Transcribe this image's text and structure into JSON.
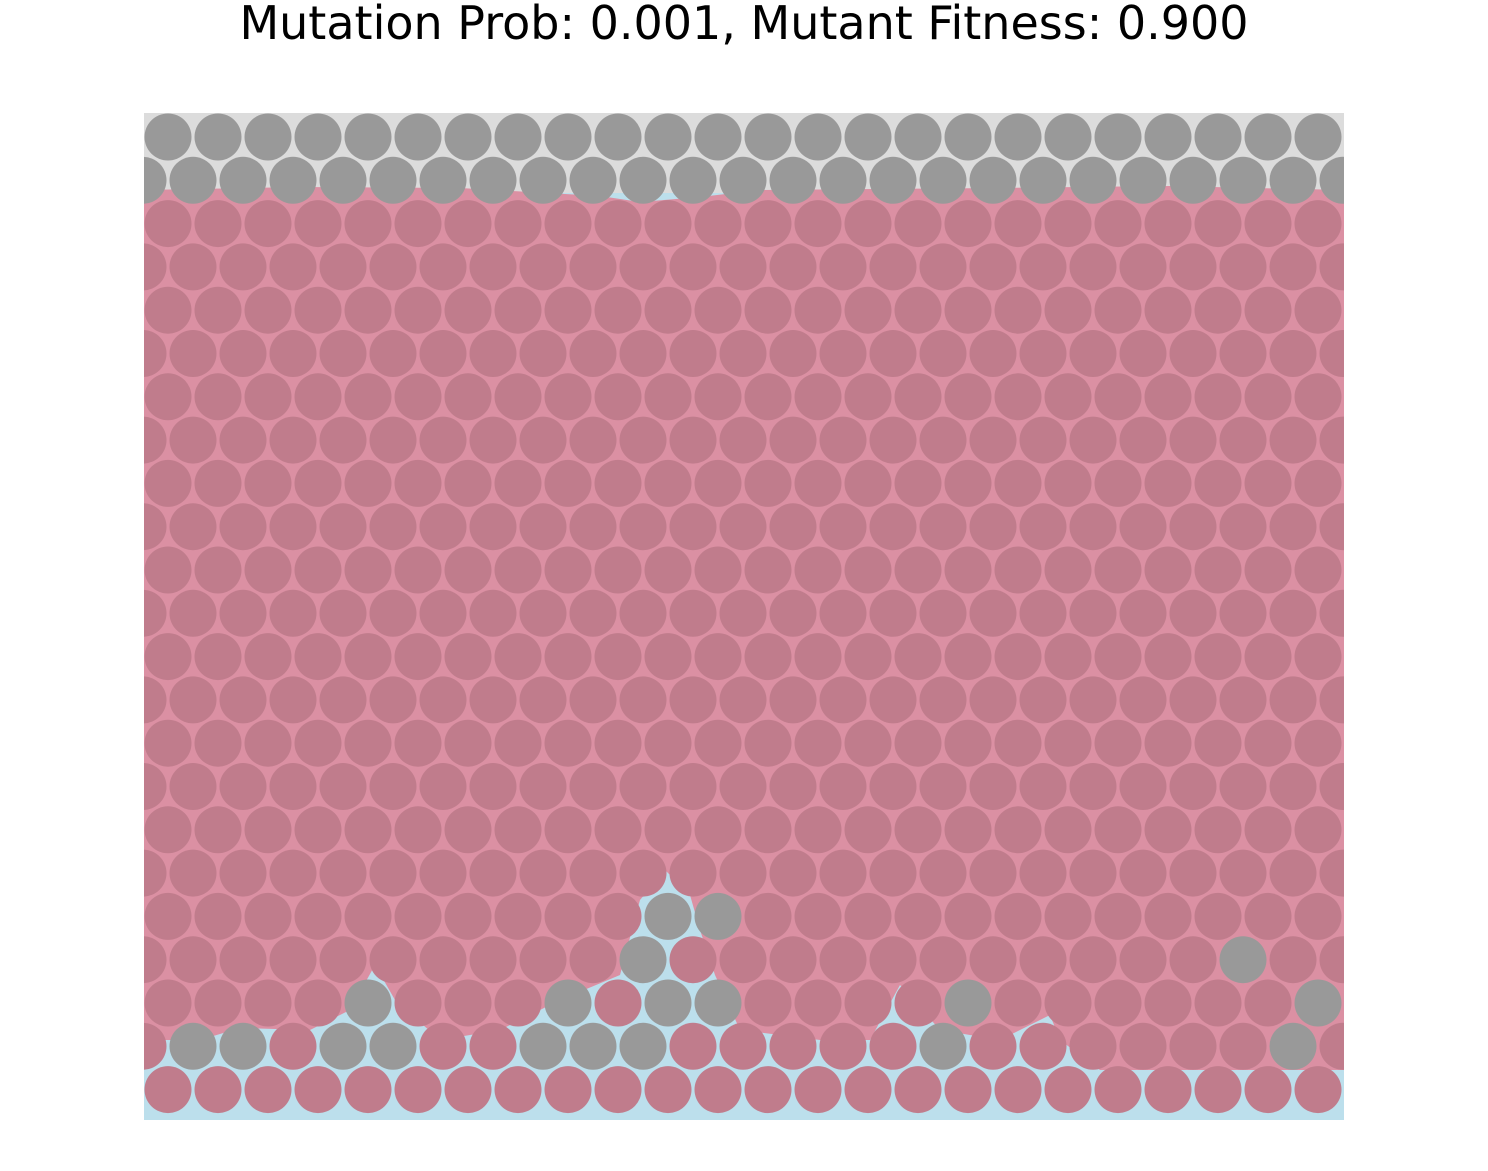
{
  "title": "Mutation Prob: 0.001, Mutant Fitness: 0.900",
  "grid": {
    "columns": 24,
    "rows": 23,
    "row_types": [
      "a",
      "b",
      "a",
      "b",
      "a",
      "b",
      "a",
      "b",
      "a",
      "b",
      "a",
      "b",
      "a",
      "b",
      "a",
      "b",
      "a",
      "b",
      "a",
      "b",
      "a",
      "b",
      "a"
    ]
  },
  "cell_types": {
    "wild": {
      "fill": "#999999"
    },
    "mutant": {
      "fill": "#c07c8c"
    }
  },
  "region_colors": {
    "wild_region": "#dcdcdc",
    "mutant_region": "#db90a3",
    "base_region": "#bcdfec"
  },
  "lower_rows_wild_indices": {
    "18": [
      10,
      11
    ],
    "19": [
      10,
      22
    ],
    "20": [
      4,
      8,
      10,
      11,
      16,
      23
    ],
    "21": [
      1,
      2,
      4,
      5,
      8,
      9,
      10,
      16,
      23
    ]
  },
  "mutant_cells_top_wild": [],
  "top_wild_rows": 2,
  "gaps": {
    "12": [],
    "17": [
      13
    ],
    "18": [],
    "19": [],
    "20": [],
    "21": []
  }
}
